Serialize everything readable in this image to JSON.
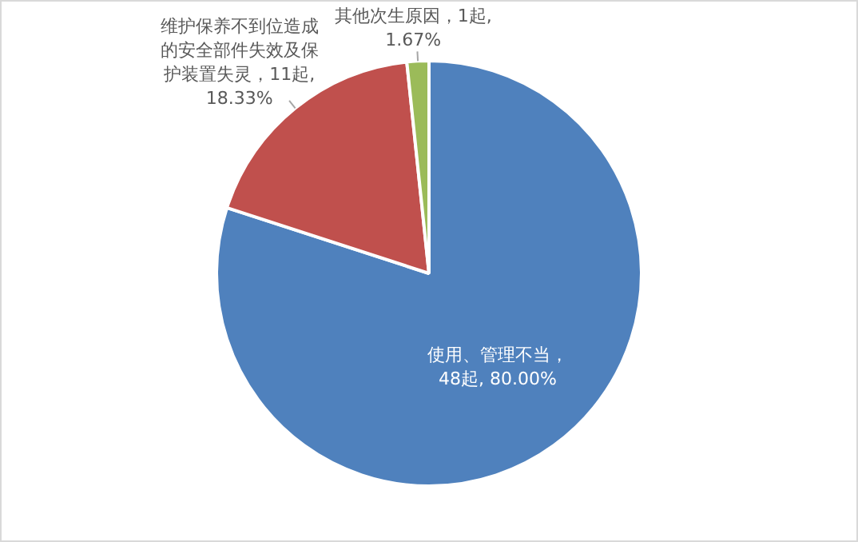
{
  "chart_data": {
    "type": "pie",
    "categories": [
      "使用、管理不当",
      "维护保养不到位造成的安全部件失效及保护装置失灵",
      "其他次生原因"
    ],
    "values": [
      48,
      11,
      1
    ],
    "colors": [
      "#4f81bd",
      "#c0504d",
      "#9bbb59"
    ],
    "value_labels": [
      "，48起, 80.00%",
      "，11起, 18.33%",
      "，1起, 1.67%"
    ],
    "legend": false
  }
}
